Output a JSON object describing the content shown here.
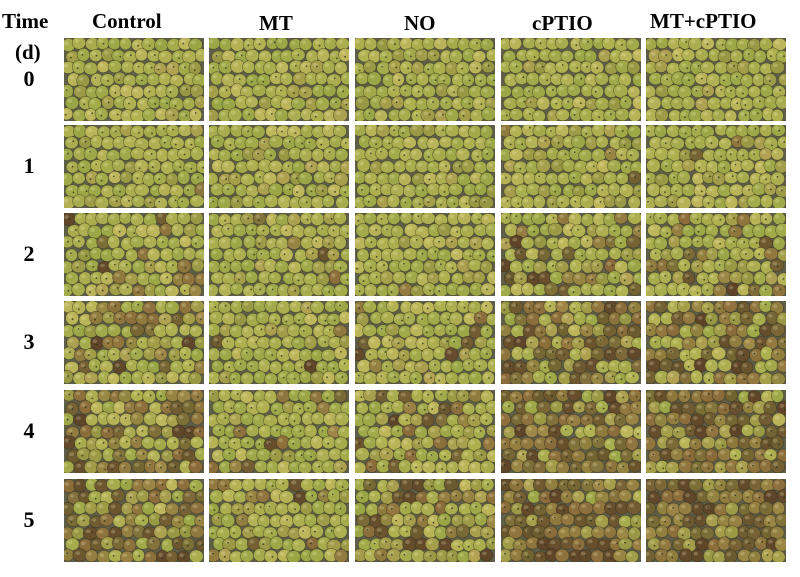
{
  "axis": {
    "time_label": "Time",
    "unit_label": "(d)"
  },
  "treatments": [
    "Control",
    "MT",
    "NO",
    "cPTIO",
    "MT+cPTIO"
  ],
  "days": [
    "0",
    "1",
    "2",
    "3",
    "4",
    "5"
  ],
  "colors": {
    "tray_background": "#5f5e48",
    "fruit_green": "#9aa646",
    "fruit_yellow_green": "#b8b555",
    "fruit_yellow": "#c9bb62",
    "fruit_brown": "#8a6a3a",
    "fruit_dark_brown": "#5e4328"
  },
  "browning_level": [
    [
      0.0,
      0.0,
      0.0,
      0.0,
      0.0
    ],
    [
      0.02,
      0.0,
      0.01,
      0.03,
      0.02
    ],
    [
      0.1,
      0.03,
      0.02,
      0.22,
      0.25
    ],
    [
      0.28,
      0.06,
      0.12,
      0.6,
      0.62
    ],
    [
      0.55,
      0.12,
      0.22,
      0.7,
      0.72
    ],
    [
      0.65,
      0.22,
      0.4,
      0.82,
      0.85
    ]
  ]
}
